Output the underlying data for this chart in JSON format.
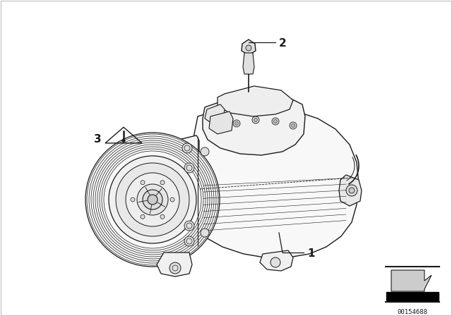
{
  "bg_color": "#ffffff",
  "line_color": "#1a1a1a",
  "label_1": "1",
  "label_2": "2",
  "label_3": "3",
  "part_number": "00154688",
  "fig_width": 6.4,
  "fig_height": 4.48,
  "dpi": 100,
  "border_color": "#cccccc"
}
